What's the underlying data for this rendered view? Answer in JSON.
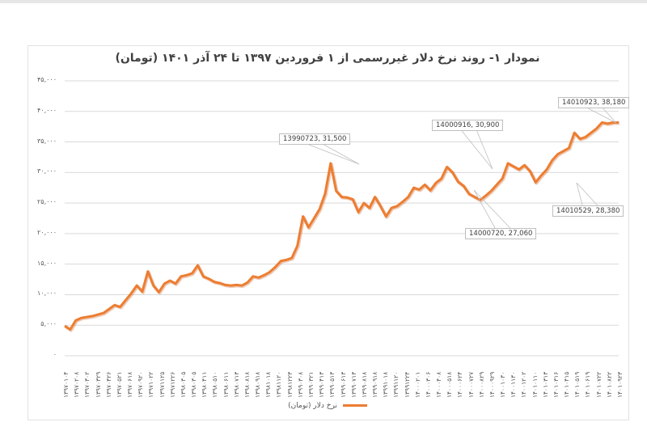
{
  "chart_data": {
    "type": "line",
    "title": "نمودار ۱- روند نرخ دلار غیررسمی از ۱ فروردین ۱۳۹۷ تا ۲۴ آذر ۱۴۰۱ (تومان)",
    "xlabel": "",
    "ylabel": "",
    "ylim": [
      0,
      45000
    ],
    "grid": true,
    "legend_position": "bottom",
    "series_color": "#ed7d31",
    "y_ticks": [
      "۰",
      "۵,۰۰۰",
      "۱۰,۰۰۰",
      "۱۵,۰۰۰",
      "۲۰,۰۰۰",
      "۲۵,۰۰۰",
      "۳۰,۰۰۰",
      "۳۵,۰۰۰",
      "۴۰,۰۰۰",
      "۴۵,۰۰۰"
    ],
    "x_ticks": [
      "۱۳۹۷۰۱۰۴",
      "۱۳۹۷۰۲۰۸",
      "۱۳۹۷۰۳۰۲",
      "۱۳۹۷۰۳۲۹",
      "۱۳۹۷۰۴۲۶",
      "۱۳۹۷۰۵۲۱",
      "۱۳۹۷۰۶۱۸",
      "۱۳۹۷۰۹۲۰",
      "۱۳۹۷۱۰۲۲",
      "۱۳۹۷۱۱۲۵",
      "۱۳۹۷۱۲۲۶",
      "۱۳۹۸۰۳۰۵",
      "۱۳۹۸۰۳۰۵",
      "۱۳۹۸۰۴۱۱",
      "۱۳۹۸۰۵۱۰",
      "۱۳۹۸۰۶۱۱",
      "۱۳۹۸۰۷۱۳",
      "۱۳۹۸۰۸۱۸",
      "۱۳۹۸۰۹۱۸",
      "۱۳۹۸۱۰۱۸",
      "۱۳۹۸۱۱۲۰",
      "۱۳۹۸۱۲۲۳",
      "۱۳۹۹۰۳۰۸",
      "۱۳۹۹۰۳۲۱",
      "۱۳۹۹۰۴۱۳",
      "۱۳۹۹۰۵۱۳",
      "۱۳۹۹۰۶۱۳",
      "۱۳۹۹۰۷۱۳",
      "۱۳۹۹۰۸۱۸",
      "۱۳۹۹۰۹۱۸",
      "۱۳۹۹۱۰۱۸",
      "۱۳۹۹۱۱۲۰",
      "۱۳۹۹۱۲۲۴",
      "۱۴۰۰۰۲۰۱",
      "۱۴۰۰۰۳۰۶",
      "۱۴۰۰۰۴۰۸",
      "۱۴۰۰۰۵۱۸",
      "۱۴۰۰۰۶۲۴",
      "۱۴۰۰۰۷۲۷",
      "۱۴۰۰۰۸۲۹",
      "۱۴۰۰۰۹۲۹",
      "۱۴۰۰۱۰۳۰",
      "۱۴۰۰۱۱۳۰",
      "۱۴۰۰۱۲۰۲",
      "۱۴۰۱۰۱۱۰",
      "۱۴۰۱۰۳۱۳",
      "۱۴۰۱۰۳۱۶",
      "۱۴۰۱۰۴۱۵",
      "۱۴۰۱۰۵۱۹",
      "۱۴۰۱۰۶۱۹",
      "۱۴۰۱۰۷۲۲",
      "۱۴۰۱۰۸۲۲",
      "۱۴۰۱۰۹۲۳"
    ],
    "series": [
      {
        "name": "نرخ دلار (تومان)",
        "x": [
          0,
          0.01,
          0.02,
          0.03,
          0.05,
          0.07,
          0.09,
          0.1,
          0.12,
          0.13,
          0.14,
          0.15,
          0.16,
          0.17,
          0.18,
          0.19,
          0.2,
          0.21,
          0.22,
          0.23,
          0.24,
          0.25,
          0.26,
          0.27,
          0.28,
          0.29,
          0.3,
          0.31,
          0.32,
          0.33,
          0.34,
          0.35,
          0.36,
          0.37,
          0.38,
          0.39,
          0.4,
          0.41,
          0.42,
          0.43,
          0.44,
          0.45,
          0.46,
          0.47,
          0.48,
          0.49,
          0.5,
          0.51,
          0.52,
          0.53,
          0.54,
          0.55,
          0.56,
          0.57,
          0.58,
          0.59,
          0.6,
          0.61,
          0.62,
          0.63,
          0.64,
          0.65,
          0.66,
          0.67,
          0.68,
          0.69,
          0.7,
          0.71,
          0.72,
          0.73,
          0.74,
          0.75,
          0.76,
          0.77,
          0.78,
          0.79,
          0.8,
          0.81,
          0.82,
          0.83,
          0.84,
          0.85,
          0.86,
          0.87,
          0.88,
          0.89,
          0.9,
          0.91,
          0.92,
          0.93,
          0.94,
          0.95,
          0.96,
          0.97,
          0.98,
          0.99,
          1.0
        ],
        "values": [
          4900,
          4300,
          5800,
          6200,
          6500,
          7000,
          8300,
          8000,
          10200,
          11500,
          10500,
          13800,
          11500,
          10400,
          11800,
          12300,
          11800,
          13000,
          13200,
          13500,
          14800,
          13000,
          12600,
          12100,
          11900,
          11600,
          11500,
          11600,
          11500,
          12000,
          13000,
          12800,
          13200,
          13700,
          14500,
          15500,
          15700,
          16000,
          18000,
          22800,
          21000,
          22500,
          24000,
          26500,
          31500,
          27000,
          26000,
          25900,
          25600,
          23500,
          25000,
          24200,
          26000,
          24500,
          22800,
          24200,
          24500,
          25200,
          26000,
          27500,
          27200,
          28000,
          27060,
          28300,
          29000,
          30900,
          30000,
          28500,
          27800,
          26500,
          26000,
          25500,
          26200,
          27000,
          28000,
          29000,
          31500,
          31000,
          30500,
          31200,
          30200,
          28380,
          29500,
          30500,
          32000,
          33000,
          33500,
          34000,
          36500,
          35500,
          35800,
          36500,
          37200,
          38180,
          38000,
          38180,
          38180
        ]
      }
    ],
    "annotations": [
      {
        "label": "13990723, 31,500",
        "date": "13990723",
        "value": 31500
      },
      {
        "label": "14000916, 30,900",
        "date": "14000916",
        "value": 30900
      },
      {
        "label": "14000720, 27,060",
        "date": "14000720",
        "value": 27060
      },
      {
        "label": "14010529, 28,380",
        "date": "14010529",
        "value": 28380
      },
      {
        "label": "14010923, 38,180",
        "date": "14010923",
        "value": 38180
      }
    ]
  },
  "legend": {
    "label": "نرخ دلار (تومان)"
  }
}
